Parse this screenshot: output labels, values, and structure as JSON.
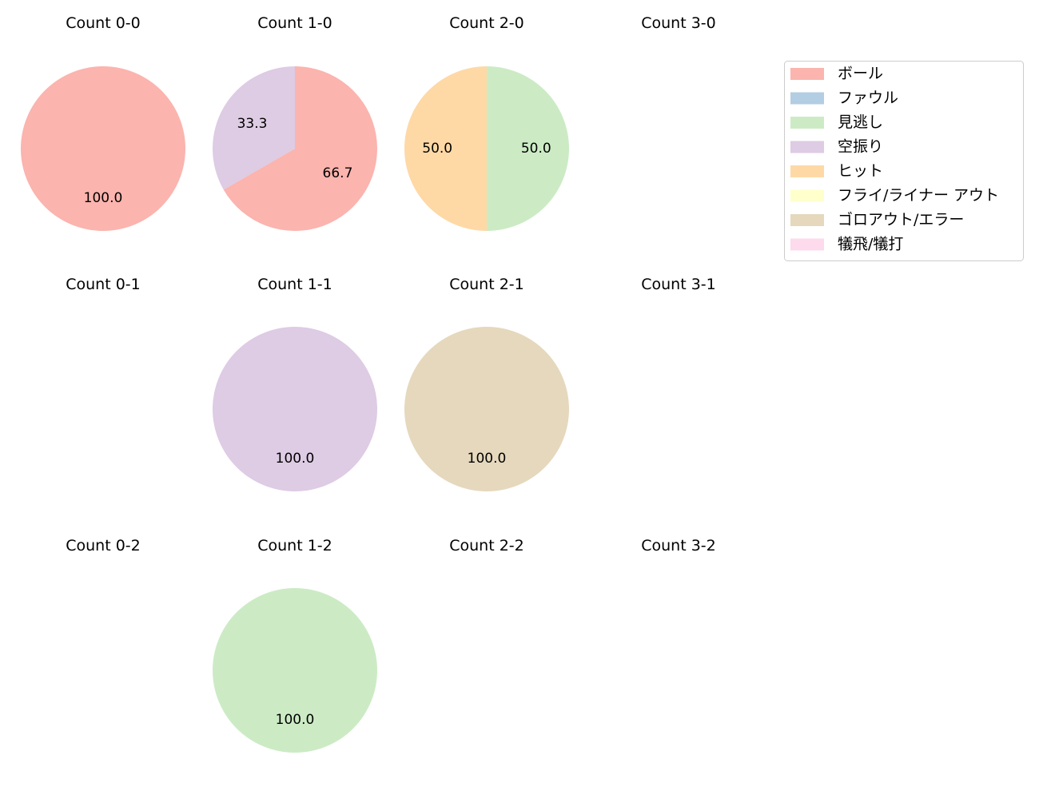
{
  "chart_data": {
    "type": "pie",
    "categories": [
      "ボール",
      "ファウル",
      "見逃し",
      "空振り",
      "ヒット",
      "フライ/ライナー アウト",
      "ゴロアウト/エラー",
      "犠飛/犠打"
    ],
    "colors": [
      "#fbb4ae",
      "#b3cde3",
      "#ccebc5",
      "#decbe4",
      "#fed9a6",
      "#ffffcc",
      "#e5d8bd",
      "#fddaec"
    ],
    "legend_placement": "upper-right",
    "start_angle": 90,
    "direction": "clockwise",
    "subplots": [
      {
        "title": "Count 0-0",
        "values": [
          100,
          0,
          0,
          0,
          0,
          0,
          0,
          0
        ],
        "labels": [
          "100.0"
        ]
      },
      {
        "title": "Count 1-0",
        "values": [
          66.7,
          0,
          0,
          33.3,
          0,
          0,
          0,
          0
        ],
        "labels": [
          "66.7",
          "33.3"
        ]
      },
      {
        "title": "Count 2-0",
        "values": [
          0,
          0,
          50,
          0,
          50,
          0,
          0,
          0
        ],
        "labels": [
          "50.0",
          "50.0"
        ]
      },
      {
        "title": "Count 3-0",
        "values": [],
        "labels": []
      },
      {
        "title": "Count 0-1",
        "values": [],
        "labels": []
      },
      {
        "title": "Count 1-1",
        "values": [
          0,
          0,
          0,
          100,
          0,
          0,
          0,
          0
        ],
        "labels": [
          "100.0"
        ]
      },
      {
        "title": "Count 2-1",
        "values": [
          0,
          0,
          0,
          0,
          0,
          0,
          100,
          0
        ],
        "labels": [
          "100.0"
        ]
      },
      {
        "title": "Count 3-1",
        "values": [],
        "labels": []
      },
      {
        "title": "Count 0-2",
        "values": [],
        "labels": []
      },
      {
        "title": "Count 1-2",
        "values": [
          0,
          0,
          100,
          0,
          0,
          0,
          0,
          0
        ],
        "labels": [
          "100.0"
        ]
      },
      {
        "title": "Count 2-2",
        "values": [],
        "labels": []
      },
      {
        "title": "Count 3-2",
        "values": [],
        "labels": []
      }
    ]
  }
}
